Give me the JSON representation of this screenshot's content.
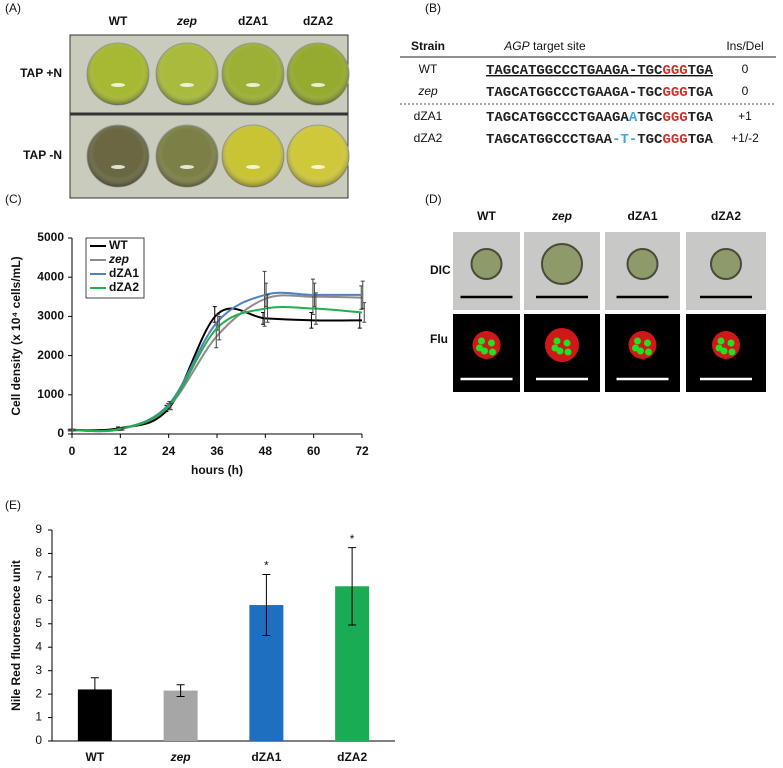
{
  "panel_labels": [
    "(A)",
    "(B)",
    "(C)",
    "(D)",
    "(E)"
  ],
  "plate": {
    "columns": [
      {
        "text": "WT",
        "italic": false
      },
      {
        "text": "zep",
        "italic": true
      },
      {
        "text": "dZA1",
        "italic": false
      },
      {
        "text": "dZA2",
        "italic": false
      }
    ],
    "rows": [
      "TAP +N",
      "TAP -N"
    ]
  },
  "alignment": {
    "headers": {
      "strain": "Strain",
      "site_gene": "AGP",
      "site_rest": "target site",
      "indel": "Ins/Del"
    },
    "rows": [
      {
        "strain": "WT",
        "italic": false,
        "underline": true,
        "indel": "0",
        "segments": [
          {
            "text": "TAGCATGGCCCTGAAGA-TGC",
            "color": "#222222"
          },
          {
            "text": "GGG",
            "color": "#d0302a"
          },
          {
            "text": "TGA",
            "color": "#222222"
          }
        ]
      },
      {
        "strain": "zep",
        "italic": true,
        "underline": false,
        "indel": "0",
        "segments": [
          {
            "text": "TAGCATGGCCCTGAAGA-TGC",
            "color": "#222222"
          },
          {
            "text": "GGG",
            "color": "#d0302a"
          },
          {
            "text": "TGA",
            "color": "#222222"
          }
        ]
      },
      {
        "strain": "dZA1",
        "italic": false,
        "underline": false,
        "indel": "+1",
        "segments": [
          {
            "text": "TAGCATGGCCCTGAAGA",
            "color": "#222222"
          },
          {
            "text": "A",
            "color": "#3aa8d8"
          },
          {
            "text": "TGC",
            "color": "#222222"
          },
          {
            "text": "GGG",
            "color": "#d0302a"
          },
          {
            "text": "TGA",
            "color": "#222222"
          }
        ]
      },
      {
        "strain": "dZA2",
        "italic": false,
        "underline": false,
        "indel": "+1/-2",
        "segments": [
          {
            "text": "TAGCATGGCCCTGAA",
            "color": "#222222"
          },
          {
            "text": "-T-",
            "color": "#3aa8d8"
          },
          {
            "text": "TGC",
            "color": "#222222"
          },
          {
            "text": "GGG",
            "color": "#d0302a"
          },
          {
            "text": "TGA",
            "color": "#222222"
          }
        ]
      }
    ]
  },
  "microscopy": {
    "columns": [
      {
        "text": "WT",
        "italic": false
      },
      {
        "text": "zep",
        "italic": true
      },
      {
        "text": "dZA1",
        "italic": false
      },
      {
        "text": "dZA2",
        "italic": false
      }
    ],
    "rows": [
      "DIC",
      "Flu"
    ]
  },
  "chart_data": [
    {
      "type": "line",
      "xlabel": "hours (h)",
      "ylabel": "Cell density (x 10⁴ cells/mL)",
      "x": [
        0,
        12,
        24,
        36,
        48,
        60,
        72
      ],
      "xlim": [
        0,
        72
      ],
      "xticks": [
        0,
        12,
        24,
        36,
        48,
        60,
        72
      ],
      "ylim": [
        0,
        5000
      ],
      "yticks": [
        0,
        1000,
        2000,
        3000,
        4000,
        5000
      ],
      "legend": "upper left",
      "series": [
        {
          "name": "WT",
          "italic": false,
          "color": "#000000",
          "values": [
            100,
            150,
            650,
            3050,
            2950,
            2900,
            2900
          ],
          "errors": [
            20,
            30,
            80,
            200,
            150,
            200,
            200
          ]
        },
        {
          "name": "zep",
          "italic": true,
          "color": "#8c8c8c",
          "values": [
            100,
            120,
            700,
            2500,
            3450,
            3500,
            3480
          ],
          "errors": [
            20,
            30,
            80,
            300,
            700,
            450,
            300
          ]
        },
        {
          "name": "dZA1",
          "italic": false,
          "color": "#4f81bd",
          "values": [
            100,
            130,
            750,
            2850,
            3550,
            3550,
            3550
          ],
          "errors": [
            20,
            30,
            80,
            200,
            300,
            300,
            350
          ]
        },
        {
          "name": "dZA2",
          "italic": false,
          "color": "#1fb14a",
          "values": [
            100,
            130,
            700,
            2700,
            3200,
            3200,
            3100
          ],
          "errors": [
            20,
            30,
            80,
            300,
            350,
            400,
            250
          ]
        }
      ]
    },
    {
      "type": "bar",
      "ylabel": "Nile Red fluorescence unit",
      "categories": [
        "WT",
        "zep",
        "dZA1",
        "dZA2"
      ],
      "italic": [
        false,
        true,
        false,
        false
      ],
      "values": [
        2.2,
        2.15,
        5.8,
        6.6
      ],
      "errors": [
        0.5,
        0.25,
        1.3,
        1.65
      ],
      "colors": [
        "#000000",
        "#a6a6a6",
        "#1f6fc0",
        "#1aab55"
      ],
      "ylim": [
        0,
        9
      ],
      "yticks": [
        0,
        1,
        2,
        3,
        4,
        5,
        6,
        7,
        8,
        9
      ],
      "annotations": [
        {
          "text": "*",
          "category": "dZA1"
        },
        {
          "text": "*",
          "category": "dZA2"
        }
      ]
    }
  ]
}
